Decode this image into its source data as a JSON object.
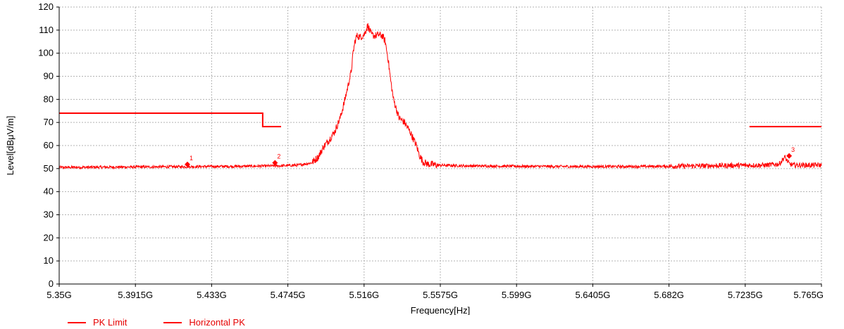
{
  "colors": {
    "limit": "#ff0000",
    "trace": "#ff0000",
    "label": "#e60000",
    "grid": "#b3b3b3"
  },
  "chart_data": {
    "type": "line",
    "xlabel": "Frequency[Hz]",
    "ylabel": "Level[dBμV/m]",
    "xlim": [
      5.35,
      5.765
    ],
    "ylim": [
      0,
      120
    ],
    "x_ticks": [
      5.35,
      5.3915,
      5.433,
      5.4745,
      5.516,
      5.5575,
      5.599,
      5.6405,
      5.682,
      5.7235,
      5.765
    ],
    "x_tick_labels": [
      "5.35G",
      "5.3915G",
      "5.433G",
      "5.4745G",
      "5.516G",
      "5.5575G",
      "5.599G",
      "5.6405G",
      "5.682G",
      "5.7235G",
      "5.765G"
    ],
    "y_ticks": [
      0,
      10,
      20,
      30,
      40,
      50,
      60,
      70,
      80,
      90,
      100,
      110,
      120
    ],
    "y_tick_labels": [
      "0",
      "10",
      "20",
      "30",
      "40",
      "50",
      "60",
      "70",
      "80",
      "90",
      "100",
      "110",
      "120"
    ],
    "grid": true,
    "legend_position": "bottom-left",
    "series": [
      {
        "name": "PK Limit",
        "segments": [
          [
            [
              5.35,
              74
            ],
            [
              5.4608,
              74
            ],
            [
              5.4608,
              68.2
            ],
            [
              5.4708,
              68.2
            ]
          ],
          [
            [
              5.7258,
              68.2
            ],
            [
              5.765,
              68.2
            ]
          ]
        ]
      },
      {
        "name": "Horizontal PK",
        "x": [
          5.35,
          5.37,
          5.39,
          5.41,
          5.43,
          5.45,
          5.47,
          5.48,
          5.4875,
          5.491,
          5.494,
          5.497,
          5.5,
          5.503,
          5.505,
          5.507,
          5.509,
          5.51,
          5.511,
          5.512,
          5.514,
          5.516,
          5.518,
          5.52,
          5.522,
          5.524,
          5.526,
          5.5275,
          5.529,
          5.5305,
          5.532,
          5.535,
          5.538,
          5.541,
          5.5445,
          5.546,
          5.548,
          5.5505,
          5.556,
          5.57,
          5.6,
          5.63,
          5.66,
          5.682,
          5.7,
          5.72,
          5.735,
          5.742,
          5.745,
          5.7475,
          5.75,
          5.755,
          5.765
        ],
        "y": [
          50.5,
          50.6,
          50.7,
          50.8,
          50.9,
          51,
          51.2,
          51.5,
          52.5,
          55,
          59.5,
          62.5,
          66,
          72,
          78,
          85,
          92,
          100,
          105,
          107.5,
          107,
          108,
          112,
          108,
          107.5,
          108,
          107.5,
          105,
          98,
          88,
          80,
          72,
          70,
          66,
          60,
          56,
          53,
          52,
          51.5,
          51.2,
          51,
          50.9,
          50.9,
          51,
          51.2,
          51.4,
          51.5,
          52,
          55,
          52,
          51.5,
          51.5,
          51.5
        ]
      }
    ],
    "markers": [
      {
        "label": "1",
        "x": 5.4198,
        "y": 51.8
      },
      {
        "label": "2",
        "x": 5.4675,
        "y": 52.5
      },
      {
        "label": "3",
        "x": 5.7474,
        "y": 55.5
      }
    ]
  }
}
